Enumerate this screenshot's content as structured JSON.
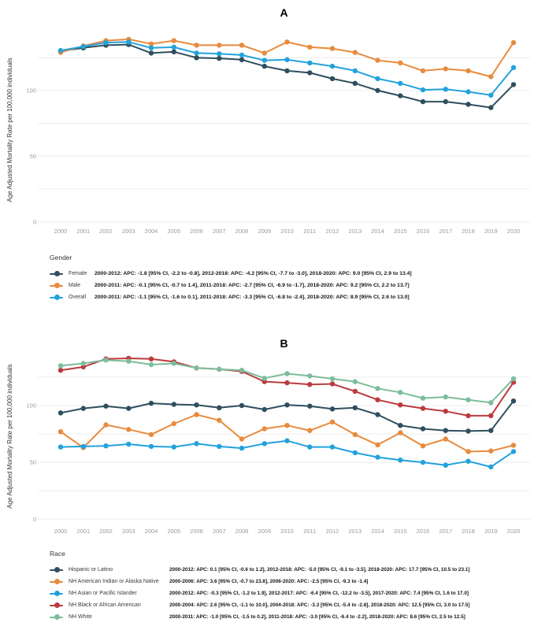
{
  "y_axis_label": "Age Adjusted Mortality Rate per 100,000 individuals",
  "chart_data": [
    {
      "type": "line",
      "title": "A",
      "legend_title": "Gender",
      "xlabel": "",
      "ylabel": "Age Adjusted Mortality Rate per 100,000 individuals",
      "x": [
        "2000",
        "2001",
        "2002",
        "2003",
        "2004",
        "2005",
        "2006",
        "2007",
        "2008",
        "2009",
        "2010",
        "2011",
        "2012",
        "2013",
        "2014",
        "2015",
        "2016",
        "2017",
        "2018",
        "2019",
        "2020"
      ],
      "y_ticks": [
        0,
        50,
        100
      ],
      "grid_step": 25,
      "ylim": [
        0,
        148
      ],
      "grid": true,
      "legend_position": "bottom-left",
      "series": [
        {
          "name": "Female",
          "color": "#2F4E5E",
          "apc": "2000-2012: APC: -1.8 [95% CI, -2.2 to -0.8], 2012-2018: APC: -4.2 [95% CI, -7.7 to -3.0], 2018-2020: APC: 9.0 [95% CI, 2.9 to 13.4]",
          "values": [
            130,
            132.5,
            134.5,
            135,
            128.5,
            129.5,
            125,
            124.5,
            123.5,
            118.5,
            115,
            113.5,
            109,
            105.5,
            100,
            96,
            91.5,
            91.5,
            89.5,
            87,
            104.5
          ]
        },
        {
          "name": "Male",
          "color": "#E88B3D",
          "apc": "2000-2011: APC: -0.1 [95% CI, -0.7 to 1.4], 2011-2018: APC: -2.7 [95% CI, -6.9 to -1.7], 2018-2020: APC: 9.2 [95% CI, 2.2 to 13.7]",
          "values": [
            129,
            134,
            138,
            139,
            135.5,
            138,
            134.5,
            134.5,
            134.5,
            128.5,
            137,
            133,
            132,
            129,
            123,
            121,
            115,
            116.5,
            115,
            110.5,
            136.5
          ]
        },
        {
          "name": "Overall",
          "color": "#22A2DC",
          "apc": "2000-2011: APC: -1.1 [95% CI, -1.6 to 0.1], 2011-2018: APC: -3.3 [95% CI, -6.8 to -2.4], 2018-2020: APC: 8.9 [95% CI, 2.6 to 13.0]",
          "values": [
            130.5,
            133.5,
            136.5,
            137,
            132.5,
            133,
            128.5,
            128,
            127,
            123,
            123.5,
            121,
            118.5,
            115,
            109,
            105.5,
            100.5,
            101,
            99,
            96.5,
            117.5
          ]
        }
      ]
    },
    {
      "type": "line",
      "title": "B",
      "legend_title": "Race",
      "xlabel": "",
      "ylabel": "Age Adjusted Mortality Rate per 100,000 individuals",
      "x": [
        "2000",
        "2001",
        "2002",
        "2003",
        "2004",
        "2005",
        "2006",
        "2007",
        "2008",
        "2009",
        "2010",
        "2011",
        "2012",
        "2013",
        "2014",
        "2015",
        "2016",
        "2017",
        "2018",
        "2019",
        "2020"
      ],
      "y_ticks": [
        0,
        50,
        100
      ],
      "grid_step": 25,
      "ylim": [
        0,
        148
      ],
      "grid": true,
      "legend_position": "bottom-left",
      "series": [
        {
          "name": "Hispanic or Latino",
          "color": "#2F4E5E",
          "apc": "2000-2012: APC: 0.1 [95% CI, -0.6 to 1.2], 2012-2018: APC: -5.0 [95% CI, -9.1 to -3.5], 2018-2020: APC: 17.7 [95% CI, 10.5 to 23.1]",
          "values": [
            93.5,
            97.5,
            99.5,
            97.5,
            102,
            101,
            100.5,
            98,
            100,
            96.5,
            100.5,
            99.5,
            97,
            98,
            92,
            82.5,
            79.5,
            78,
            77.5,
            78,
            104
          ]
        },
        {
          "name": "NH American Indian or Alaska Native",
          "color": "#E88B3D",
          "apc": "2000-2006: APC: 3.6 [95% CI, -0.7 to 23.8], 2006-2020: APC: -2.5 [95% CI, -9.3 to -1.4]",
          "values": [
            77,
            63,
            83,
            79,
            74.5,
            84,
            92,
            87,
            70.5,
            79.5,
            82.5,
            78,
            85.5,
            74.5,
            65.5,
            76,
            64.5,
            70.5,
            59.5,
            60,
            65
          ]
        },
        {
          "name": "NH Asian or Pacific Islander",
          "color": "#22A2DC",
          "apc": "2000-2012: APC: -0.3 [95% CI, -1.2 to 1.9], 2012-2017: APC: -6.4 [95% CI, -12.2 to -3.5], 2017-2020: APC: 7.4 [95% CI, 1.6 to 17.0]",
          "values": [
            63.5,
            64,
            64.5,
            66,
            64,
            63.5,
            66.5,
            64,
            62.5,
            66.5,
            69,
            63.5,
            63.5,
            58.5,
            54.5,
            52,
            50,
            47.5,
            51,
            46,
            59.5
          ]
        },
        {
          "name": "NH Black or African American",
          "color": "#BB3B3E",
          "apc": "2000-2004: APC: 2.6 [95% CI, -1.1 to 10.0], 2004-2018: APC: -3.3 [95% CI, -5.4 to -2.8], 2018-2020: APC: 12.5 [95% CI, 3.0 to 17.5]",
          "values": [
            131,
            134,
            141,
            141.5,
            141,
            138.5,
            133,
            132,
            130,
            121,
            120,
            118.5,
            119,
            112.5,
            105,
            100.5,
            97.5,
            95,
            91,
            91,
            120.5
          ]
        },
        {
          "name": "NH White",
          "color": "#7DBC9C",
          "apc": "2000-2011: APC: -1.0 [95% CI, -1.5 to 0.2], 2011-2018: APC: -3.0 [95% CI, -6.4 to -2.2], 2018-2020: APC: 8.6 [95% CI, 2.5 to 12.5]",
          "values": [
            135,
            137,
            140,
            139,
            136,
            137,
            133,
            132,
            131,
            124,
            128,
            126,
            123.5,
            121,
            115,
            111.5,
            106.5,
            107.5,
            105,
            102.5,
            123.5
          ]
        }
      ]
    }
  ]
}
